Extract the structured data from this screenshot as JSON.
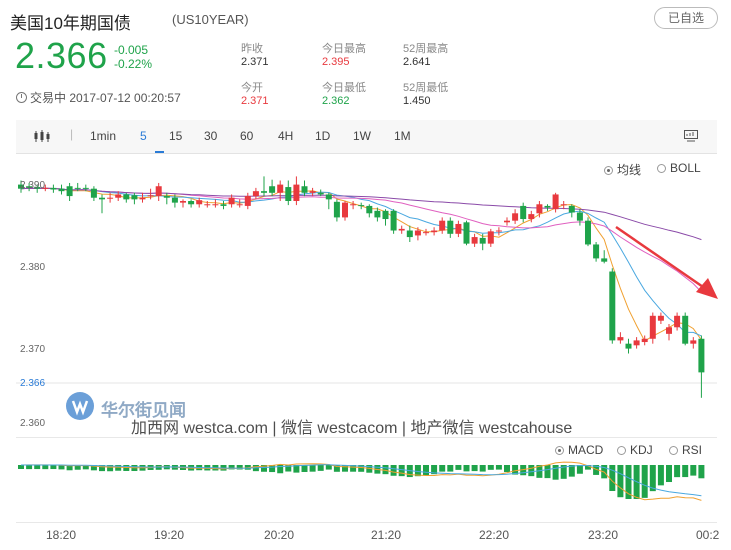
{
  "header": {
    "title": "美国10年期国债",
    "symbol": "(US10YEAR)",
    "fav_label": "已自选",
    "price": "2.366",
    "change": "-0.005",
    "change_pct": "-0.22%",
    "status": "交易中 2017-07-12 00:20:57"
  },
  "stats": {
    "prev_close_label": "昨收",
    "prev_close": "2.371",
    "open_label": "今开",
    "open": "2.371",
    "high_label": "今日最高",
    "high": "2.395",
    "low_label": "今日最低",
    "low": "2.362",
    "wk52_high_label": "52周最高",
    "wk52_high": "2.641",
    "wk52_low_label": "52周最低",
    "wk52_low": "1.450"
  },
  "toolbar": {
    "periods": [
      "1min",
      "5",
      "15",
      "30",
      "60",
      "4H",
      "1D",
      "1W",
      "1M"
    ],
    "active_period": "5"
  },
  "overlay_options": {
    "ma": "均线",
    "boll": "BOLL",
    "selected": "均线"
  },
  "indicator_options": {
    "macd": "MACD",
    "kdj": "KDJ",
    "rsi": "RSI",
    "selected": "MACD"
  },
  "watermark": {
    "brand": "华尔街见闻",
    "text": "加西网 westca.com | 微信 westcacom | 地产微信 westcahouse"
  },
  "colors": {
    "up": "#e8393e",
    "down": "#1fa34a",
    "accent": "#2a7bd6",
    "annotation_arrow": "#e8393e"
  },
  "chart_data": {
    "type": "candlestick",
    "title": "",
    "xlabel": "",
    "ylabel": "",
    "y_ticks": [
      "2.390",
      "2.380",
      "2.370",
      "2.366",
      "2.360"
    ],
    "x_ticks": [
      "18:20",
      "19:20",
      "20:20",
      "21:20",
      "22:20",
      "23:20",
      "00:2"
    ],
    "ylim": [
      2.358,
      2.392
    ],
    "last_price": 2.366,
    "candles": [
      {
        "o": 2.389,
        "c": 2.3885,
        "h": 2.3895,
        "l": 2.388
      },
      {
        "o": 2.3888,
        "c": 2.3886,
        "h": 2.3892,
        "l": 2.3882
      },
      {
        "o": 2.3887,
        "c": 2.3885,
        "h": 2.389,
        "l": 2.388
      },
      {
        "o": 2.3885,
        "c": 2.3886,
        "h": 2.389,
        "l": 2.3882
      },
      {
        "o": 2.3886,
        "c": 2.3884,
        "h": 2.389,
        "l": 2.388
      },
      {
        "o": 2.3885,
        "c": 2.3882,
        "h": 2.389,
        "l": 2.3878
      },
      {
        "o": 2.3888,
        "c": 2.3876,
        "h": 2.3892,
        "l": 2.387
      },
      {
        "o": 2.3886,
        "c": 2.3885,
        "h": 2.3892,
        "l": 2.3882
      },
      {
        "o": 2.3886,
        "c": 2.3885,
        "h": 2.389,
        "l": 2.3882
      },
      {
        "o": 2.3885,
        "c": 2.3874,
        "h": 2.3888,
        "l": 2.387
      },
      {
        "o": 2.3874,
        "c": 2.3872,
        "h": 2.3878,
        "l": 2.3855
      },
      {
        "o": 2.3873,
        "c": 2.3874,
        "h": 2.388,
        "l": 2.3868
      },
      {
        "o": 2.3874,
        "c": 2.3878,
        "h": 2.3882,
        "l": 2.387
      },
      {
        "o": 2.3878,
        "c": 2.3872,
        "h": 2.388,
        "l": 2.3868
      },
      {
        "o": 2.3877,
        "c": 2.3872,
        "h": 2.388,
        "l": 2.3866
      },
      {
        "o": 2.3872,
        "c": 2.3874,
        "h": 2.388,
        "l": 2.3868
      },
      {
        "o": 2.3876,
        "c": 2.3877,
        "h": 2.3885,
        "l": 2.3872
      },
      {
        "o": 2.3876,
        "c": 2.3888,
        "h": 2.3892,
        "l": 2.387
      },
      {
        "o": 2.3876,
        "c": 2.3874,
        "h": 2.388,
        "l": 2.3866
      },
      {
        "o": 2.3874,
        "c": 2.3868,
        "h": 2.3878,
        "l": 2.3862
      },
      {
        "o": 2.3868,
        "c": 2.387,
        "h": 2.3872,
        "l": 2.3862
      },
      {
        "o": 2.387,
        "c": 2.3866,
        "h": 2.3872,
        "l": 2.3862
      },
      {
        "o": 2.3866,
        "c": 2.3871,
        "h": 2.3874,
        "l": 2.3862
      },
      {
        "o": 2.3865,
        "c": 2.3866,
        "h": 2.387,
        "l": 2.3862
      },
      {
        "o": 2.3866,
        "c": 2.3866,
        "h": 2.3872,
        "l": 2.3862
      },
      {
        "o": 2.3866,
        "c": 2.3864,
        "h": 2.387,
        "l": 2.386
      },
      {
        "o": 2.3866,
        "c": 2.3874,
        "h": 2.3878,
        "l": 2.3862
      },
      {
        "o": 2.3866,
        "c": 2.3866,
        "h": 2.3872,
        "l": 2.3862
      },
      {
        "o": 2.3864,
        "c": 2.3876,
        "h": 2.388,
        "l": 2.386
      },
      {
        "o": 2.3876,
        "c": 2.3882,
        "h": 2.3886,
        "l": 2.3872
      },
      {
        "o": 2.3882,
        "c": 2.388,
        "h": 2.39,
        "l": 2.3876
      },
      {
        "o": 2.3888,
        "c": 2.388,
        "h": 2.3896,
        "l": 2.3876
      },
      {
        "o": 2.388,
        "c": 2.389,
        "h": 2.3895,
        "l": 2.387
      },
      {
        "o": 2.3887,
        "c": 2.387,
        "h": 2.3895,
        "l": 2.3865
      },
      {
        "o": 2.387,
        "c": 2.389,
        "h": 2.39,
        "l": 2.3865
      },
      {
        "o": 2.3888,
        "c": 2.388,
        "h": 2.3895,
        "l": 2.3876
      },
      {
        "o": 2.388,
        "c": 2.3882,
        "h": 2.3886,
        "l": 2.3876
      },
      {
        "o": 2.388,
        "c": 2.3878,
        "h": 2.3884,
        "l": 2.3876
      },
      {
        "o": 2.3878,
        "c": 2.3872,
        "h": 2.388,
        "l": 2.386
      },
      {
        "o": 2.3869,
        "c": 2.385,
        "h": 2.3872,
        "l": 2.3845
      },
      {
        "o": 2.385,
        "c": 2.3868,
        "h": 2.387,
        "l": 2.3846
      },
      {
        "o": 2.3866,
        "c": 2.3866,
        "h": 2.387,
        "l": 2.386
      },
      {
        "o": 2.3865,
        "c": 2.3864,
        "h": 2.3868,
        "l": 2.386
      },
      {
        "o": 2.3864,
        "c": 2.3855,
        "h": 2.3866,
        "l": 2.385
      },
      {
        "o": 2.3858,
        "c": 2.385,
        "h": 2.3862,
        "l": 2.3845
      },
      {
        "o": 2.3858,
        "c": 2.3848,
        "h": 2.386,
        "l": 2.384
      },
      {
        "o": 2.3858,
        "c": 2.3834,
        "h": 2.386,
        "l": 2.383
      },
      {
        "o": 2.3834,
        "c": 2.3836,
        "h": 2.384,
        "l": 2.383
      },
      {
        "o": 2.3834,
        "c": 2.3826,
        "h": 2.384,
        "l": 2.382
      },
      {
        "o": 2.3828,
        "c": 2.3834,
        "h": 2.3838,
        "l": 2.3822
      },
      {
        "o": 2.3832,
        "c": 2.3832,
        "h": 2.3836,
        "l": 2.3828
      },
      {
        "o": 2.3832,
        "c": 2.3834,
        "h": 2.3838,
        "l": 2.3828
      },
      {
        "o": 2.3834,
        "c": 2.3846,
        "h": 2.385,
        "l": 2.383
      },
      {
        "o": 2.3846,
        "c": 2.383,
        "h": 2.385,
        "l": 2.3825
      },
      {
        "o": 2.383,
        "c": 2.3842,
        "h": 2.3846,
        "l": 2.3826
      },
      {
        "o": 2.3844,
        "c": 2.3818,
        "h": 2.3846,
        "l": 2.3816
      },
      {
        "o": 2.3818,
        "c": 2.3826,
        "h": 2.383,
        "l": 2.3814
      },
      {
        "o": 2.3825,
        "c": 2.3818,
        "h": 2.383,
        "l": 2.381
      },
      {
        "o": 2.3818,
        "c": 2.3833,
        "h": 2.3836,
        "l": 2.3814
      },
      {
        "o": 2.3834,
        "c": 2.3834,
        "h": 2.3838,
        "l": 2.3828
      },
      {
        "o": 2.3844,
        "c": 2.3846,
        "h": 2.385,
        "l": 2.384
      },
      {
        "o": 2.3846,
        "c": 2.3855,
        "h": 2.386,
        "l": 2.3842
      },
      {
        "o": 2.3864,
        "c": 2.3848,
        "h": 2.3868,
        "l": 2.3844
      },
      {
        "o": 2.3848,
        "c": 2.3854,
        "h": 2.3858,
        "l": 2.3844
      },
      {
        "o": 2.3855,
        "c": 2.3866,
        "h": 2.387,
        "l": 2.385
      },
      {
        "o": 2.3864,
        "c": 2.3862,
        "h": 2.3866,
        "l": 2.3858
      },
      {
        "o": 2.386,
        "c": 2.3878,
        "h": 2.388,
        "l": 2.3856
      },
      {
        "o": 2.3866,
        "c": 2.3866,
        "h": 2.387,
        "l": 2.386
      },
      {
        "o": 2.3864,
        "c": 2.3856,
        "h": 2.3866,
        "l": 2.385
      },
      {
        "o": 2.3856,
        "c": 2.3846,
        "h": 2.386,
        "l": 2.384
      },
      {
        "o": 2.3846,
        "c": 2.3817,
        "h": 2.385,
        "l": 2.3815
      },
      {
        "o": 2.3817,
        "c": 2.38,
        "h": 2.382,
        "l": 2.3796
      },
      {
        "o": 2.38,
        "c": 2.3796,
        "h": 2.381,
        "l": 2.3794
      },
      {
        "o": 2.3784,
        "c": 2.37,
        "h": 2.3788,
        "l": 2.3696
      },
      {
        "o": 2.37,
        "c": 2.3704,
        "h": 2.371,
        "l": 2.3696
      },
      {
        "o": 2.3696,
        "c": 2.369,
        "h": 2.3702,
        "l": 2.3684
      },
      {
        "o": 2.3694,
        "c": 2.37,
        "h": 2.3704,
        "l": 2.369
      },
      {
        "o": 2.3698,
        "c": 2.3702,
        "h": 2.3706,
        "l": 2.3694
      },
      {
        "o": 2.3702,
        "c": 2.373,
        "h": 2.3734,
        "l": 2.3696
      },
      {
        "o": 2.3724,
        "c": 2.373,
        "h": 2.3734,
        "l": 2.372
      },
      {
        "o": 2.3708,
        "c": 2.3716,
        "h": 2.372,
        "l": 2.37
      },
      {
        "o": 2.3716,
        "c": 2.373,
        "h": 2.3734,
        "l": 2.3712
      },
      {
        "o": 2.373,
        "c": 2.3696,
        "h": 2.3734,
        "l": 2.3694
      },
      {
        "o": 2.3696,
        "c": 2.37,
        "h": 2.3704,
        "l": 2.369
      },
      {
        "o": 2.3702,
        "c": 2.3661,
        "h": 2.3706,
        "l": 2.363
      }
    ]
  }
}
